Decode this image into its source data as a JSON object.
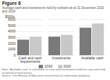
{
  "chart_data": {
    "type": "bar",
    "title": "Figure 6",
    "subtitle": "Average cash and investments held by schools as at 31 December 2020 and 2019",
    "categories": [
      "Cash and cash\nrequirements",
      "Investments",
      "Available cash"
    ],
    "series": [
      {
        "name": "2019",
        "color": "#7a7a7a",
        "values": [
          2600,
          3100,
          4600
        ]
      },
      {
        "name": "2020",
        "color": "#c8c8c8",
        "values": [
          3100,
          3400,
          5300
        ]
      }
    ],
    "ylabel": "$000s",
    "ylim": [
      0,
      6000
    ],
    "yticks": [
      0,
      1000,
      2000,
      3000,
      4000,
      5000,
      6000
    ],
    "grid": true,
    "legend": "bottom",
    "annotations": [
      "Note: 'Available cash' is calculated as cash and investments held less any cash held on behalf of third parties.",
      "Source: The Ministry of Education school financial information database."
    ]
  }
}
